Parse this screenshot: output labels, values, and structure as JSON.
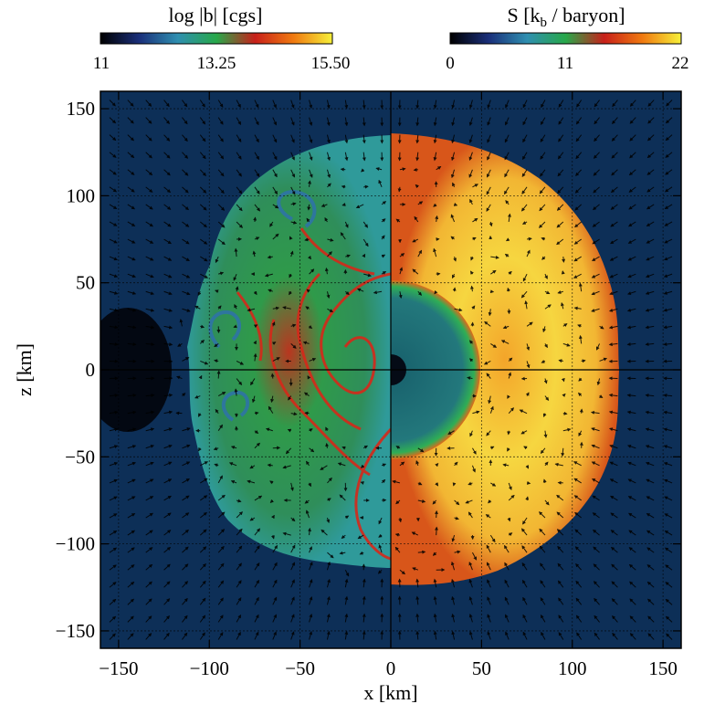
{
  "chart_data": {
    "type": "heatmap",
    "panels": [
      {
        "name": "magnetic-field-half",
        "side": "left",
        "quantity": "log |b| [cgs]",
        "colorbar": {
          "title_main": "log |b| [cgs]",
          "ticks": [
            "11",
            "13.25",
            "15.50"
          ],
          "range": [
            11,
            15.5
          ],
          "stops": [
            "#000000",
            "#1a2f7a",
            "#2f8fb0",
            "#27a84a",
            "#c8201a",
            "#f07a10",
            "#f6f03a"
          ]
        }
      },
      {
        "name": "entropy-half",
        "side": "right",
        "quantity": "S [k_b / baryon]",
        "colorbar": {
          "title_main": "S [k",
          "title_sub": "b",
          "title_end": " / baryon]",
          "ticks": [
            "0",
            "11",
            "22"
          ],
          "range": [
            0,
            22
          ],
          "stops": [
            "#000000",
            "#1a2f7a",
            "#2f8fb0",
            "#27a84a",
            "#c8201a",
            "#f07a10",
            "#f6f03a"
          ]
        }
      }
    ],
    "x_axis": {
      "label": "x [km]",
      "range": [
        -160,
        160
      ],
      "ticks": [
        -150,
        -100,
        -50,
        0,
        50,
        100,
        150
      ],
      "tick_labels": [
        "−150",
        "−100",
        "−50",
        "0",
        "50",
        "100",
        "150"
      ]
    },
    "y_axis": {
      "label": "z [km]",
      "range": [
        -160,
        160
      ],
      "ticks": [
        -150,
        -100,
        -50,
        0,
        50,
        100,
        150
      ],
      "tick_labels": [
        "−150",
        "−100",
        "−50",
        "0",
        "50",
        "100",
        "150"
      ]
    },
    "grid": true,
    "overlay": "velocity vector field (arrows)",
    "features": {
      "shock_radius_km": 118,
      "proto_neutron_star_radius_km": 48,
      "core_radius_km": 9
    },
    "colors": {
      "background_field": "#0d2f57",
      "field_green": "#2f9a4a",
      "field_teal": "#2e7f7a",
      "field_red": "#c8201a",
      "entropy_yellow": "#f6e34a",
      "entropy_orange": "#e07a1c",
      "pns_teal": "#1f6f77",
      "pns_rim_green": "#2fae55"
    }
  }
}
